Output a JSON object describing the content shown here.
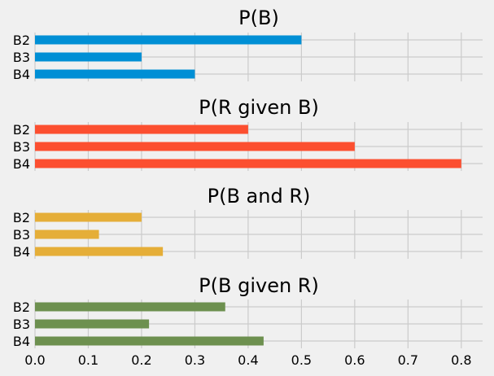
{
  "chart_data": [
    {
      "type": "bar",
      "orientation": "horizontal",
      "title": "P(B)",
      "categories": [
        "B2",
        "B3",
        "B4"
      ],
      "values": [
        0.5,
        0.2,
        0.3
      ],
      "color": "#008fd5",
      "xlim": [
        0,
        0.84
      ]
    },
    {
      "type": "bar",
      "orientation": "horizontal",
      "title": "P(R given B)",
      "categories": [
        "B2",
        "B3",
        "B4"
      ],
      "values": [
        0.4,
        0.6,
        0.8
      ],
      "color": "#fc4f30",
      "xlim": [
        0,
        0.84
      ]
    },
    {
      "type": "bar",
      "orientation": "horizontal",
      "title": "P(B and R)",
      "categories": [
        "B2",
        "B3",
        "B4"
      ],
      "values": [
        0.2,
        0.12,
        0.24
      ],
      "color": "#e5ae38",
      "xlim": [
        0,
        0.84
      ]
    },
    {
      "type": "bar",
      "orientation": "horizontal",
      "title": "P(B given R)",
      "categories": [
        "B2",
        "B3",
        "B4"
      ],
      "values": [
        0.357,
        0.214,
        0.429
      ],
      "color": "#6d904f",
      "xlim": [
        0,
        0.84
      ]
    }
  ],
  "x_ticks": [
    "0.0",
    "0.1",
    "0.2",
    "0.3",
    "0.4",
    "0.5",
    "0.6",
    "0.7",
    "0.8"
  ],
  "x_tick_values": [
    0,
    0.1,
    0.2,
    0.3,
    0.4,
    0.5,
    0.6,
    0.7,
    0.8
  ],
  "grid": true
}
